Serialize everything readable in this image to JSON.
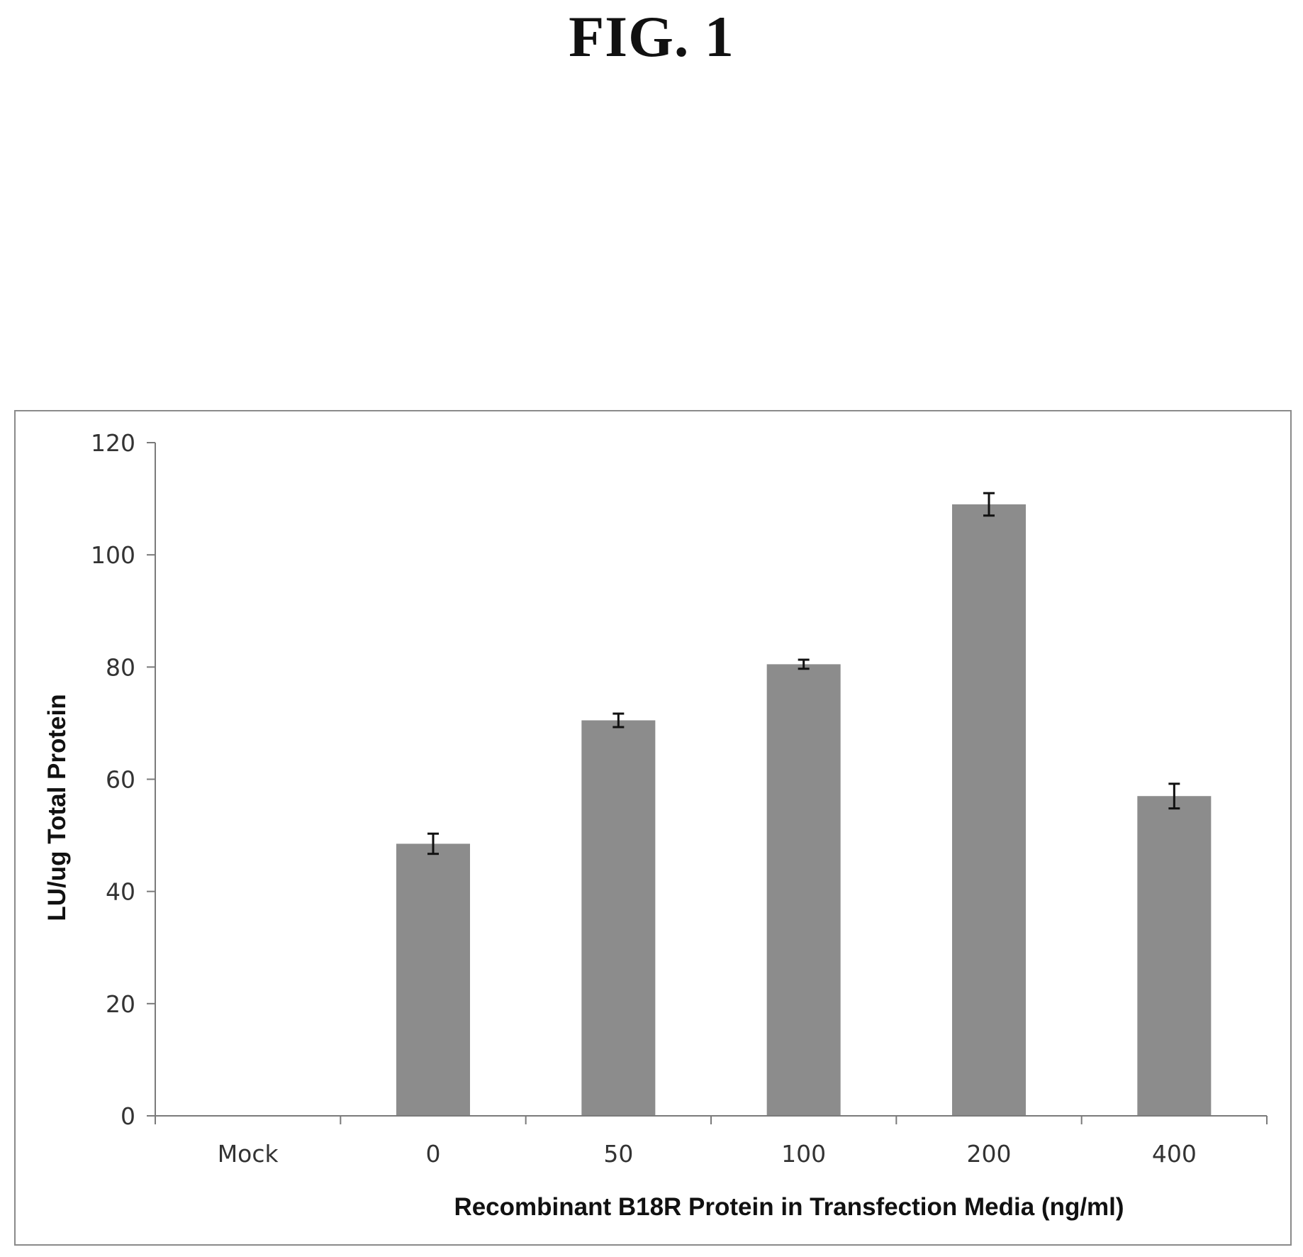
{
  "figure": {
    "title": "FIG. 1"
  },
  "colors": {
    "bar": "#8c8c8c",
    "axis": "#7a7a7a",
    "error_bar": "#111111",
    "frame": "#8a8a8a"
  },
  "chart_data": {
    "type": "bar",
    "title": "",
    "xlabel": "Recombinant B18R Protein in Transfection Media (ng/ml)",
    "ylabel": "LU/ug Total Protein",
    "categories": [
      "Mock",
      "0",
      "50",
      "100",
      "200",
      "400"
    ],
    "values": [
      0,
      48.5,
      70.5,
      80.5,
      109,
      57
    ],
    "errors": [
      0,
      1.8,
      1.2,
      0.8,
      2.0,
      2.2
    ],
    "ylim": [
      0,
      120
    ],
    "yticks": [
      0,
      20,
      40,
      60,
      80,
      100,
      120
    ],
    "grid": false,
    "legend": "none"
  }
}
